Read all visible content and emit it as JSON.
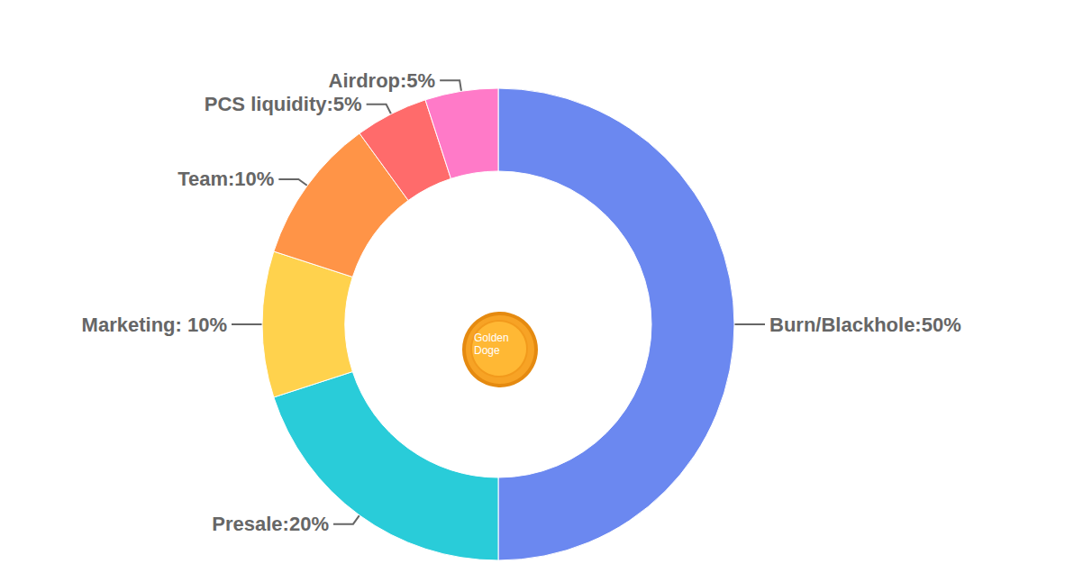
{
  "chart_data": {
    "type": "donut",
    "categories": [
      "Burn/Blackhole",
      "Presale",
      "Marketing",
      "Team",
      "PCS liquidity",
      "Airdrop"
    ],
    "values": [
      50,
      20,
      10,
      10,
      5,
      5
    ],
    "value_labels": [
      "Burn/Blackhole:50%",
      "Presale:20%",
      "Marketing: 10%",
      "Team:10%",
      "PCS liquidity:5%",
      "Airdrop:5%"
    ],
    "colors": [
      "#6b88f0",
      "#29ccd9",
      "#ffd24d",
      "#ff9447",
      "#ff6b6b",
      "#ff7ac8"
    ],
    "data_labels": true,
    "annotations": [
      "Golden Doge"
    ]
  }
}
